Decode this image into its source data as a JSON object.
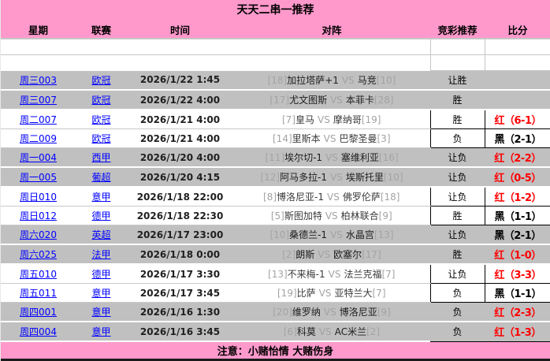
{
  "title": "天天二串一推荐",
  "note": "注意：小赌怡情 大赌伤身",
  "labels": {
    "vs": "VS"
  },
  "colors": {
    "header_pink": "#FF99CC",
    "band_gray": "#C0C0C0",
    "link_blue": "#0000FF",
    "win_red": "#FF0000",
    "lose_black": "#000000"
  },
  "columns": [
    "星期",
    "联赛",
    "时间",
    "对阵",
    "竞彩推荐",
    "比分"
  ],
  "rows": [
    {
      "week": "周三003",
      "league": "欧冠",
      "time": "2026/1/22 1:45",
      "home_rank": "[18]",
      "home": "加拉塔萨+1",
      "away": "马竞",
      "away_rank": "[10]",
      "rec": "让胜",
      "score": "",
      "score_color": "",
      "band": "gray"
    },
    {
      "week": "周三007",
      "league": "欧冠",
      "time": "2026/1/22 4:00",
      "home_rank": "[17]",
      "home": "尤文图斯",
      "away": "本菲卡",
      "away_rank": "[28]",
      "rec": "胜",
      "score": "",
      "score_color": "",
      "band": "gray"
    },
    {
      "week": "周二007",
      "league": "欧冠",
      "time": "2026/1/21 4:00",
      "home_rank": "[7]",
      "home": "皇马",
      "away": "摩纳哥",
      "away_rank": "[19]",
      "rec": "胜",
      "score": "红（6-1）",
      "score_color": "#FF0000",
      "band": "white"
    },
    {
      "week": "周二009",
      "league": "欧冠",
      "time": "2026/1/21 4:00",
      "home_rank": "[14]",
      "home": "里斯本",
      "away": "巴黎圣曼",
      "away_rank": "[3]",
      "rec": "负",
      "score": "黑（2-1）",
      "score_color": "#000000",
      "band": "white"
    },
    {
      "week": "周一004",
      "league": "西甲",
      "time": "2026/1/20 4:00",
      "home_rank": "[11]",
      "home": "埃尔切-1",
      "away": "塞维利亚",
      "away_rank": "[16]",
      "rec": "让负",
      "score": "红（2-2）",
      "score_color": "#FF0000",
      "band": "gray"
    },
    {
      "week": "周一005",
      "league": "葡超",
      "time": "2026/1/20 4:15",
      "home_rank": "[12]",
      "home": "阿马多拉-1",
      "away": "埃斯托里",
      "away_rank": "[10]",
      "rec": "让负",
      "score": "红（0-5）",
      "score_color": "#FF0000",
      "band": "gray"
    },
    {
      "week": "周日010",
      "league": "意甲",
      "time": "2026/1/18 22:00",
      "home_rank": "[8]",
      "home": "博洛尼亚-1",
      "away": "佛罗伦萨",
      "away_rank": "[18]",
      "rec": "让负",
      "score": "红（1-2）",
      "score_color": "#FF0000",
      "band": "white"
    },
    {
      "week": "周日012",
      "league": "德甲",
      "time": "2026/1/18 22:30",
      "home_rank": "[5]",
      "home": "斯图加特",
      "away": "柏林联合",
      "away_rank": "[9]",
      "rec": "胜",
      "score": "黑（1-1）",
      "score_color": "#000000",
      "band": "white"
    },
    {
      "week": "周六020",
      "league": "英超",
      "time": "2026/1/17 23:00",
      "home_rank": "[10]",
      "home": "桑德兰-1",
      "away": "水晶宫",
      "away_rank": "[13]",
      "rec": "让负",
      "score": "黑（2-1）",
      "score_color": "#000000",
      "band": "gray"
    },
    {
      "week": "周六025",
      "league": "法甲",
      "time": "2026/1/18 0:00",
      "home_rank": "[2]",
      "home": "朗斯",
      "away": "欧塞尔",
      "away_rank": "[17]",
      "rec": "胜",
      "score": "红（1-0）",
      "score_color": "#FF0000",
      "band": "gray"
    },
    {
      "week": "周五010",
      "league": "德甲",
      "time": "2026/1/17 3:30",
      "home_rank": "[13]",
      "home": "不来梅-1",
      "away": "法兰克福",
      "away_rank": "[7]",
      "rec": "让负",
      "score": "红（3-3）",
      "score_color": "#FF0000",
      "band": "white"
    },
    {
      "week": "周五011",
      "league": "意甲",
      "time": "2026/1/17 3:45",
      "home_rank": "[19]",
      "home": "比萨",
      "away": "亚特兰大",
      "away_rank": "[7]",
      "rec": "负",
      "score": "黑（1-1）",
      "score_color": "#000000",
      "band": "white"
    },
    {
      "week": "周四001",
      "league": "意甲",
      "time": "2026/1/16 1:30",
      "home_rank": "[20]",
      "home": "维罗纳",
      "away": "博洛尼亚",
      "away_rank": "[9]",
      "rec": "负",
      "score": "红（2-3）",
      "score_color": "#FF0000",
      "band": "gray"
    },
    {
      "week": "周四004",
      "league": "意甲",
      "time": "2026/1/16 3:45",
      "home_rank": "[6]",
      "home": "科莫",
      "away": "AC米兰",
      "away_rank": "[2]",
      "rec": "负",
      "score": "红（1-3）",
      "score_color": "#FF0000",
      "band": "gray"
    }
  ]
}
